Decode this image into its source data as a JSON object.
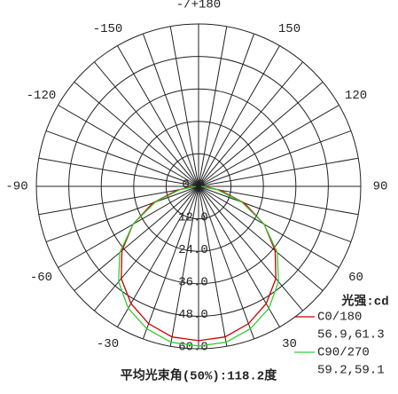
{
  "chart_data": {
    "type": "polar",
    "legend_title": "光强:cd",
    "footer": "平均光束角(50%):118.2度",
    "rlim": [
      0,
      60
    ],
    "rticks": [
      {
        "value": 0,
        "label": "0.0"
      },
      {
        "value": 12,
        "label": "12.0"
      },
      {
        "value": 24,
        "label": "24.0"
      },
      {
        "value": 36,
        "label": "36.0"
      },
      {
        "value": 48,
        "label": "48.0"
      },
      {
        "value": 60,
        "label": "60.0"
      }
    ],
    "thetaticks": [
      {
        "value": 180,
        "label": "-/+180"
      },
      150,
      120,
      90,
      60,
      30,
      -30,
      -60,
      -90,
      -120,
      -150
    ],
    "angle_grid_step": 10,
    "theta": [
      -90,
      -80,
      -70,
      -60,
      -50,
      -40,
      -30,
      -20,
      -10,
      0,
      10,
      20,
      30,
      40,
      50,
      60,
      70,
      80,
      90
    ],
    "series": [
      {
        "name": "C0/180",
        "stats": "56.9,61.3",
        "color": "#cc0000",
        "values": [
          2,
          8,
          18,
          28,
          37,
          44.5,
          50,
          54,
          56.5,
          57,
          56.5,
          54,
          50,
          44.5,
          37,
          28,
          18,
          8,
          2
        ]
      },
      {
        "name": "C90/270",
        "stats": "59.2,59.1",
        "color": "#33cc33",
        "values": [
          1,
          7,
          17,
          28,
          38,
          46,
          52,
          56,
          58.5,
          59,
          58.5,
          56,
          52,
          46,
          38,
          28,
          17,
          7,
          1
        ]
      }
    ]
  }
}
